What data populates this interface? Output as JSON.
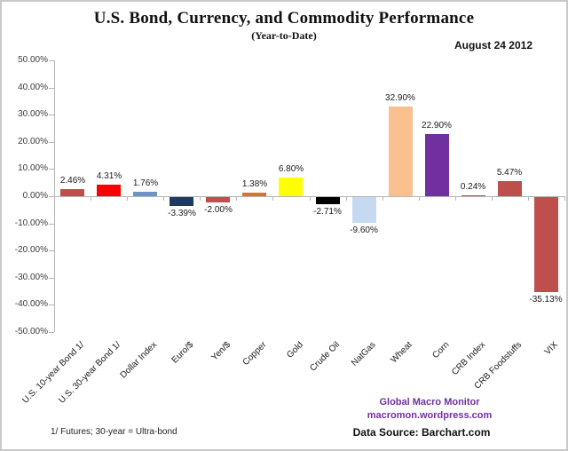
{
  "header": {
    "title": "U.S. Bond, Currency, and Commodity Performance",
    "subtitle": "(Year-to-Date)",
    "date": "August 24 2012"
  },
  "chart_data": {
    "type": "bar",
    "title": "U.S. Bond, Currency, and Commodity Performance",
    "subtitle": "(Year-to-Date)",
    "xlabel": "",
    "ylabel": "",
    "ylim": [
      -50,
      50
    ],
    "ytick_step": 10,
    "ytick_labels": [
      "50.00%",
      "40.00%",
      "30.00%",
      "20.00%",
      "10.00%",
      "0.00%",
      "-10.00%",
      "-20.00%",
      "-30.00%",
      "-40.00%",
      "-50.00%"
    ],
    "grid": false,
    "legend": "none",
    "categories": [
      "U.S. 10-year Bond 1/",
      "U.S. 30-year Bond 1/",
      "Dollar Index",
      "Euro/$",
      "Yen/$",
      "Copper",
      "Gold",
      "Crude Oil",
      "NatGas",
      "Wheat",
      "Corn",
      "CRB Index",
      "CRB Foodstuffs",
      "VIX"
    ],
    "values": [
      2.46,
      4.31,
      1.76,
      -3.39,
      -2.0,
      1.38,
      6.8,
      -2.71,
      -9.6,
      32.9,
      22.9,
      0.24,
      5.47,
      -35.13
    ],
    "value_labels": [
      "2.46%",
      "4.31%",
      "1.76%",
      "-3.39%",
      "-2.00%",
      "1.38%",
      "6.80%",
      "-2.71%",
      "-9.60%",
      "32.90%",
      "22.90%",
      "0.24%",
      "5.47%",
      "-35.13%"
    ],
    "bar_colors": [
      "#bf4f4c",
      "#ff0000",
      "#6d94c6",
      "#1f3a5e",
      "#bf4f4c",
      "#dc7227",
      "#ffff00",
      "#000000",
      "#c5d9f1",
      "#fac08f",
      "#7030a0",
      "#bf4f4c",
      "#bf4f4c",
      "#bf4f4c"
    ]
  },
  "footer": {
    "footnote": "1/  Futures; 30-year = Ultra-bond",
    "credit_line1": "Global Macro Monitor",
    "credit_line2": "macromon.wordpress.com",
    "data_source": "Data Source:  Barchart.com"
  },
  "colors": {
    "credit_purple": "#7030a0",
    "axis_gray": "#b5b5b5"
  }
}
